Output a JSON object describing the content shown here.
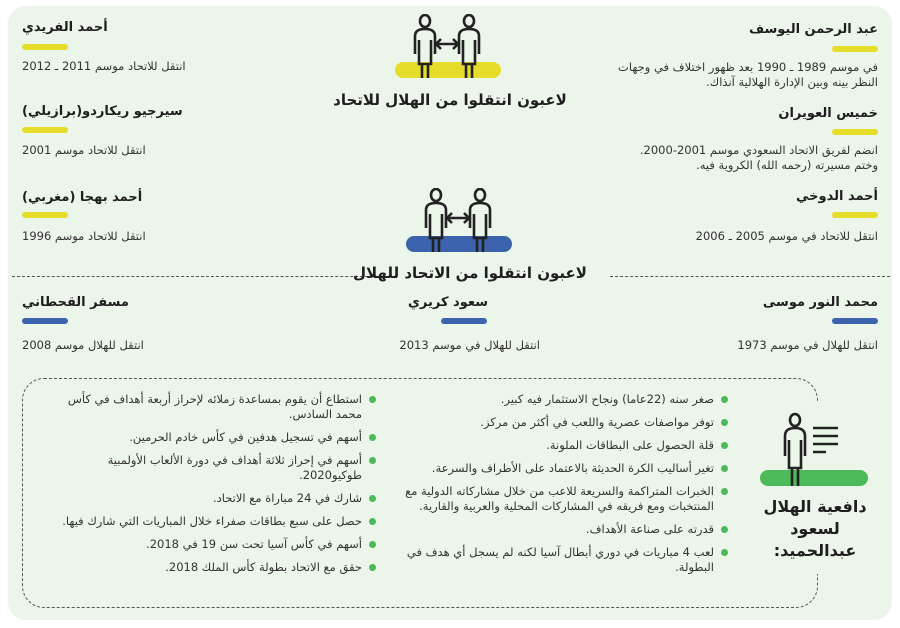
{
  "colors": {
    "background": "#ebf5e9",
    "yellow": "#e5dd2a",
    "blue": "#3c63ad",
    "green": "#4cb95a"
  },
  "section1": {
    "title": "لاعبون انتقلوا من الهلال للاتحاد",
    "icon": "players-transfer-icon",
    "players": [
      {
        "name": "عبد الرحمن اليوسف",
        "text": "في موسم 1989 ـ 1990 بعد ظهور اختلاف في وجهات النظر بينه وبين الإدارة الهلالية آنذاك."
      },
      {
        "name": "خميس العويران",
        "text": "انضم لفريق الاتحاد السعودي موسم 2001-2000. وختم مسيرته (رحمه الله) الكروية فيه."
      },
      {
        "name": "أحمد الدوخي",
        "text": "انتقل للاتحاد في موسم 2005 ـ 2006"
      },
      {
        "name": "أحمد الفريدي",
        "text": "انتقل للاتحاد موسم 2011 ـ 2012"
      },
      {
        "name": "سيرجيو ريكاردو(برازيلي)",
        "text": "انتقل للاتحاد موسم 2001"
      },
      {
        "name": "أحمد بهجا (مغربي)",
        "text": "انتقل للاتحاد موسم 1996"
      }
    ]
  },
  "section2": {
    "title": "لاعبون انتقلوا من الاتحاد للهلال",
    "icon": "players-transfer-icon",
    "players": [
      {
        "name": "محمد النور موسى",
        "text": "انتقل للهلال في موسم 1973"
      },
      {
        "name": "سعود كريري",
        "text": "انتقل للهلال في موسم 2013"
      },
      {
        "name": "مسفر القحطاني",
        "text": "انتقل للهلال موسم 2008"
      }
    ]
  },
  "section3": {
    "title": "دافعية الهلال لسعود عبدالحميد:",
    "icon": "player-list-icon",
    "reasons_right": [
      "صغر سنه (22عاما) ونجاح الاستثمار فيه كبير.",
      "توفر مواصفات عصرية واللعب في أكثر من مركز.",
      "قلة الحصول على البطاقات الملونة.",
      "تغير أساليب الكرة الحديثة بالاعتماد على الأطراف والسرعة.",
      "الخبرات المتراكمة والسريعة للاعب من خلال مشاركاته الدولية مع المنتخبات ومع فريقه في المشاركات المحلية والعربية والقارية.",
      "قدرته على صناعة الأهداف.",
      "لعب 4 مباريات في دوري أبطال آسيا لكنه لم يسجل أي هدف في البطولة."
    ],
    "reasons_left": [
      "استطاع أن يقوم بمساعدة زملائه لإحراز أربعة أهداف في كأس محمد السادس.",
      "أسهم في تسجيل هدفين في كأس خادم الحرمين.",
      "أسهم في إحراز ثلاثة أهداف في دورة الألعاب الأولمبية طوكيو2020.",
      "شارك في 24 مباراة مع الاتحاد.",
      "حصل على سبع بطاقات صفراء خلال المباريات التي شارك فيها.",
      "أسهم في كأس آسيا تحت سن 19 في 2018.",
      "حقق مع الاتحاد بطولة كأس الملك 2018."
    ]
  }
}
